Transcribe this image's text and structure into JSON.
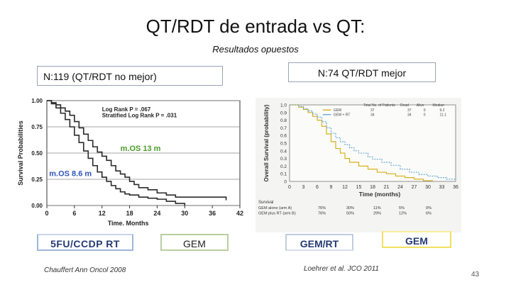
{
  "slide": {
    "title": "QT/RDT de entrada vs QT:",
    "subtitle": "Resultados opuestos",
    "left_header": "N:119 (QT/RDT no mejor)",
    "right_header": "N:74 QT/RDT mejor",
    "legend_boxes": [
      "5FU/CCDP RT",
      "GEM",
      "GEM/RT",
      "GEM"
    ],
    "citation_left": "Chauffert Ann Oncol 2008",
    "citation_right": "Loehrer et al. JCO 2011",
    "page_number": "43"
  },
  "colors": {
    "dark": "#2a2a2a",
    "green": "#4a9a2a",
    "blue": "#2e55b8",
    "yellow": "#d7b21c",
    "cyan": "#6aaad8"
  },
  "chart_data": [
    {
      "type": "line",
      "ylabel": "Survival Probabilities",
      "xlabel": "Time. Months",
      "xlim": [
        0,
        42
      ],
      "ylim": [
        0,
        1
      ],
      "x_ticks": [
        "0",
        "6",
        "12",
        "18",
        "24",
        "30",
        "36",
        "42"
      ],
      "y_ticks": [
        "0.00",
        "0.25",
        "0.50",
        "0.75",
        "1.00"
      ],
      "annotations": [
        "Log Rank P = .067",
        "Stratified Log Rank P = .031",
        "m.OS 13 m",
        "m.OS 8.6 m"
      ],
      "series": [
        {
          "name": "GEM",
          "points": [
            [
              0,
              1.0
            ],
            [
              1,
              0.98
            ],
            [
              2,
              0.96
            ],
            [
              3,
              0.93
            ],
            [
              4,
              0.9
            ],
            [
              5,
              0.86
            ],
            [
              6,
              0.8
            ],
            [
              7,
              0.74
            ],
            [
              8,
              0.68
            ],
            [
              9,
              0.62
            ],
            [
              10,
              0.56
            ],
            [
              11,
              0.51
            ],
            [
              12,
              0.47
            ],
            [
              13,
              0.43
            ],
            [
              14,
              0.38
            ],
            [
              15,
              0.33
            ],
            [
              16,
              0.3
            ],
            [
              17,
              0.27
            ],
            [
              18,
              0.23
            ],
            [
              19,
              0.2
            ],
            [
              20,
              0.17
            ],
            [
              22,
              0.15
            ],
            [
              24,
              0.12
            ],
            [
              26,
              0.1
            ],
            [
              28,
              0.08
            ],
            [
              30,
              0.08
            ],
            [
              33,
              0.08
            ],
            [
              36,
              0.08
            ],
            [
              39,
              0.08
            ],
            [
              39,
              0.05
            ]
          ]
        },
        {
          "name": "5FU/CCDP RT",
          "points": [
            [
              0,
              1.0
            ],
            [
              1,
              0.97
            ],
            [
              2,
              0.93
            ],
            [
              3,
              0.88
            ],
            [
              4,
              0.82
            ],
            [
              5,
              0.75
            ],
            [
              6,
              0.67
            ],
            [
              7,
              0.6
            ],
            [
              8,
              0.52
            ],
            [
              9,
              0.45
            ],
            [
              10,
              0.38
            ],
            [
              11,
              0.32
            ],
            [
              12,
              0.27
            ],
            [
              13,
              0.23
            ],
            [
              14,
              0.19
            ],
            [
              15,
              0.16
            ],
            [
              16,
              0.13
            ],
            [
              17,
              0.11
            ],
            [
              18,
              0.1
            ],
            [
              20,
              0.08
            ],
            [
              22,
              0.07
            ],
            [
              24,
              0.06
            ],
            [
              26,
              0.04
            ],
            [
              28,
              0.02
            ],
            [
              30,
              0.0
            ]
          ]
        }
      ]
    },
    {
      "type": "line",
      "ylabel": "Overall Survival (probability)",
      "xlabel": "Time (months)",
      "xlim": [
        0,
        36
      ],
      "ylim": [
        0,
        1
      ],
      "x_ticks": [
        "0",
        "3",
        "6",
        "9",
        "12",
        "15",
        "18",
        "21",
        "24",
        "27",
        "30",
        "33",
        "36"
      ],
      "y_ticks": [
        "0",
        "0.1",
        "0.2",
        "0.3",
        "0.4",
        "0.5",
        "0.6",
        "0.7",
        "0.8",
        "0.9",
        "1.0"
      ],
      "legend": {
        "headers": [
          "",
          "Total No. of Patients",
          "Dead",
          "Alive",
          "Median"
        ],
        "rows": [
          [
            "GEM",
            "37",
            "37",
            "0",
            "9.2"
          ],
          [
            "GEM + RT",
            "34",
            "34",
            "0",
            "11.1"
          ]
        ]
      },
      "survival_table": {
        "title": "Survival",
        "rows": [
          [
            "GEM alone (arm A)",
            "76%",
            "30%",
            "11%",
            "5%",
            "0%"
          ],
          [
            "GEM plus RT (arm B)",
            "76%",
            "50%",
            "29%",
            "12%",
            "6%"
          ]
        ]
      },
      "series": [
        {
          "name": "GEM",
          "points": [
            [
              0,
              1.0
            ],
            [
              2,
              0.97
            ],
            [
              3,
              0.94
            ],
            [
              4,
              0.9
            ],
            [
              5,
              0.85
            ],
            [
              6,
              0.8
            ],
            [
              7,
              0.72
            ],
            [
              8,
              0.62
            ],
            [
              9,
              0.52
            ],
            [
              10,
              0.43
            ],
            [
              11,
              0.37
            ],
            [
              12,
              0.3
            ],
            [
              13,
              0.25
            ],
            [
              15,
              0.2
            ],
            [
              17,
              0.16
            ],
            [
              19,
              0.12
            ],
            [
              21,
              0.1
            ],
            [
              23,
              0.07
            ],
            [
              25,
              0.05
            ],
            [
              27,
              0.03
            ],
            [
              29,
              0.01
            ],
            [
              31,
              0.0
            ]
          ]
        },
        {
          "name": "GEM + RT",
          "points": [
            [
              0,
              1.0
            ],
            [
              2,
              0.98
            ],
            [
              3,
              0.95
            ],
            [
              4,
              0.92
            ],
            [
              5,
              0.88
            ],
            [
              6,
              0.84
            ],
            [
              7,
              0.78
            ],
            [
              8,
              0.7
            ],
            [
              9,
              0.63
            ],
            [
              10,
              0.57
            ],
            [
              11,
              0.52
            ],
            [
              12,
              0.48
            ],
            [
              13,
              0.44
            ],
            [
              14,
              0.4
            ],
            [
              15,
              0.37
            ],
            [
              17,
              0.32
            ],
            [
              18,
              0.29
            ],
            [
              20,
              0.25
            ],
            [
              22,
              0.21
            ],
            [
              24,
              0.16
            ],
            [
              26,
              0.12
            ],
            [
              28,
              0.09
            ],
            [
              30,
              0.07
            ],
            [
              32,
              0.05
            ],
            [
              34,
              0.03
            ],
            [
              36,
              0.02
            ]
          ]
        }
      ]
    }
  ]
}
